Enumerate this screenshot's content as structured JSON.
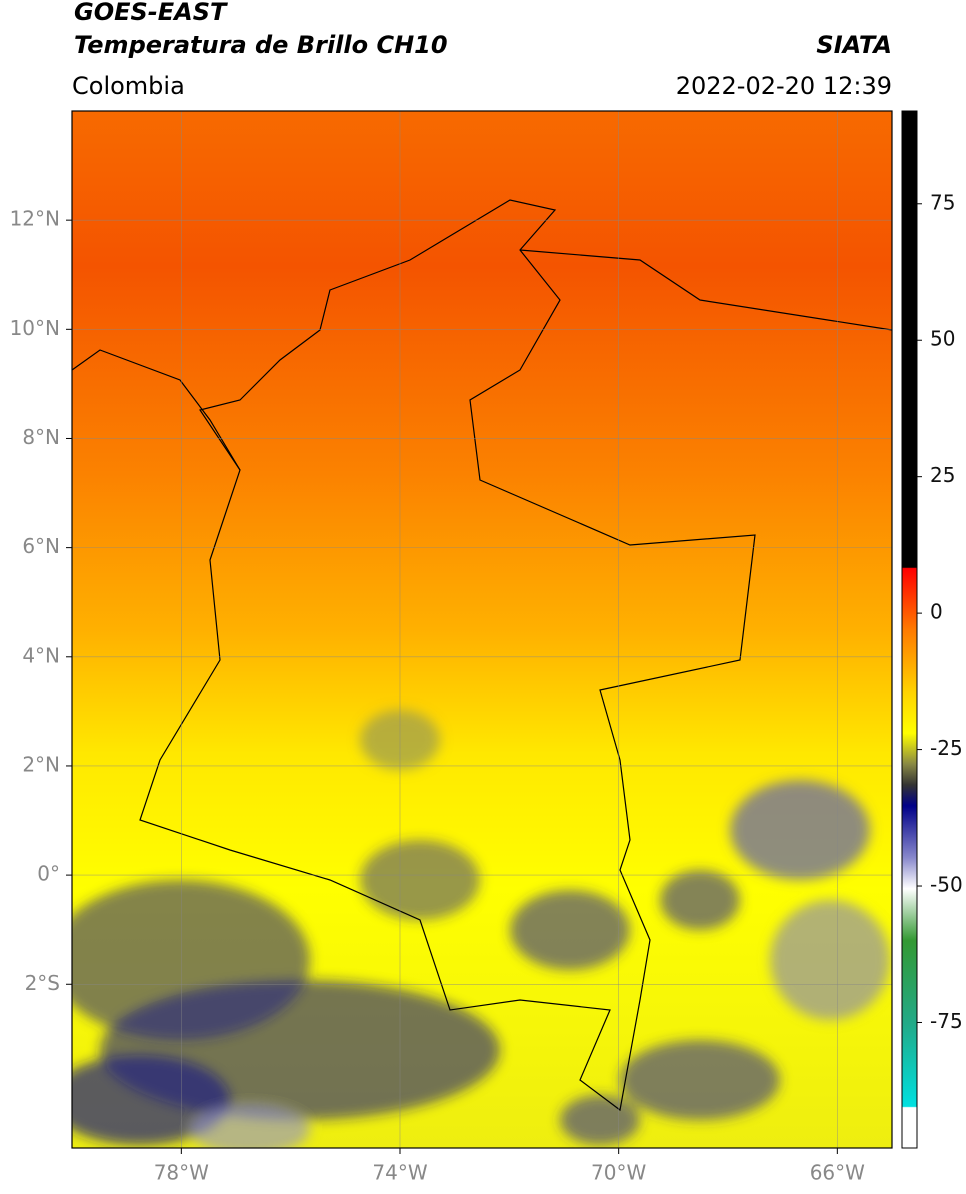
{
  "header": {
    "title": "GOES-EAST",
    "subtitle": "Temperatura de Brillo CH10",
    "source": "SIATA",
    "region": "Colombia",
    "datetime": "2022-02-20 12:39"
  },
  "map": {
    "xlim": [
      -80,
      -65
    ],
    "ylim": [
      -5,
      14
    ],
    "xticks": [
      {
        "value": -78,
        "label": "78°W"
      },
      {
        "value": -74,
        "label": "74°W"
      },
      {
        "value": -70,
        "label": "70°W"
      },
      {
        "value": -66,
        "label": "66°W"
      }
    ],
    "yticks": [
      {
        "value": 12,
        "label": "12°N"
      },
      {
        "value": 10,
        "label": "10°N"
      },
      {
        "value": 8,
        "label": "8°N"
      },
      {
        "value": 6,
        "label": "6°N"
      },
      {
        "value": 4,
        "label": "4°N"
      },
      {
        "value": 2,
        "label": "2°N"
      },
      {
        "value": 0,
        "label": "0°"
      },
      {
        "value": -2,
        "label": "2°S"
      }
    ]
  },
  "colorbar": {
    "lim": [
      -98,
      92
    ],
    "ticks": [
      75,
      50,
      25,
      0,
      -25,
      -50,
      -75
    ]
  }
}
